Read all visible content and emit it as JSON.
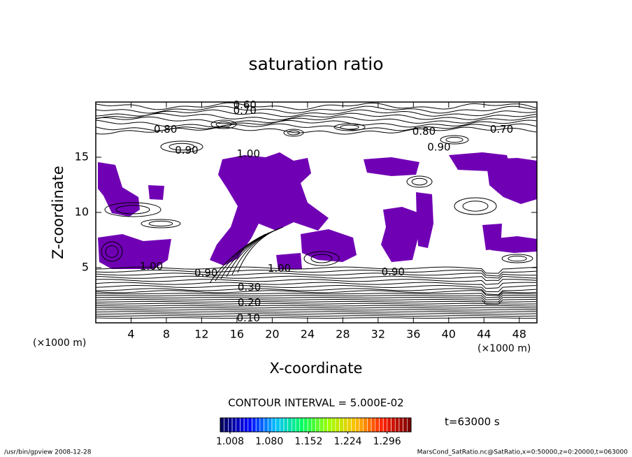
{
  "chart_data": {
    "type": "contour",
    "title": "saturation ratio",
    "x_label": "X-coordinate",
    "y_label": "Z-coordinate",
    "x_unit": "(×1000 m)",
    "y_unit": "(×1000 m)",
    "xlim": [
      0,
      50
    ],
    "ylim": [
      0,
      20
    ],
    "xticks": [
      4,
      8,
      12,
      16,
      20,
      24,
      28,
      32,
      36,
      40,
      44,
      48
    ],
    "yticks": [
      5,
      10,
      15
    ],
    "fill_color": "#7000b4",
    "contour_labels": [
      {
        "x": 16.9,
        "y": 19.7,
        "label": "0.60"
      },
      {
        "x": 16.9,
        "y": 19.2,
        "label": "0.70"
      },
      {
        "x": 7.9,
        "y": 17.5,
        "label": "0.80"
      },
      {
        "x": 10.3,
        "y": 15.6,
        "label": "0.90"
      },
      {
        "x": 17.3,
        "y": 15.3,
        "label": "1.00"
      },
      {
        "x": 37.2,
        "y": 17.3,
        "label": "0.80"
      },
      {
        "x": 38.9,
        "y": 15.9,
        "label": "0.90"
      },
      {
        "x": 46.0,
        "y": 17.5,
        "label": "0.70"
      },
      {
        "x": 6.3,
        "y": 5.1,
        "label": "1.00"
      },
      {
        "x": 12.5,
        "y": 4.5,
        "label": "0.90"
      },
      {
        "x": 20.8,
        "y": 4.9,
        "label": "1.00"
      },
      {
        "x": 33.7,
        "y": 4.6,
        "label": "0.90"
      },
      {
        "x": 17.4,
        "y": 3.2,
        "label": "0.30"
      },
      {
        "x": 17.4,
        "y": 1.8,
        "label": "0.20"
      },
      {
        "x": 17.3,
        "y": 0.4,
        "label": "0.10"
      }
    ],
    "contour_interval_label": "CONTOUR INTERVAL = 5.000E-02",
    "colorbar_lim": [
      0.99,
      1.34
    ],
    "colorbar_ticks": [
      1.008,
      {
        "value": 1.08,
        "label": "1.080"
      },
      1.152,
      1.224,
      1.296
    ],
    "colormap": [
      "#000060",
      "#0000ff",
      "#00c0ff",
      "#00ff60",
      "#a0ff00",
      "#ffc000",
      "#ff2000",
      "#800000"
    ],
    "time_label": "t=63000 s",
    "footer_left": "/usr/bin/gpview  2008-12-28",
    "footer_right": "MarsCond_SatRatio.nc@SatRatio,x=0:50000,z=0:20000,t=063000"
  }
}
